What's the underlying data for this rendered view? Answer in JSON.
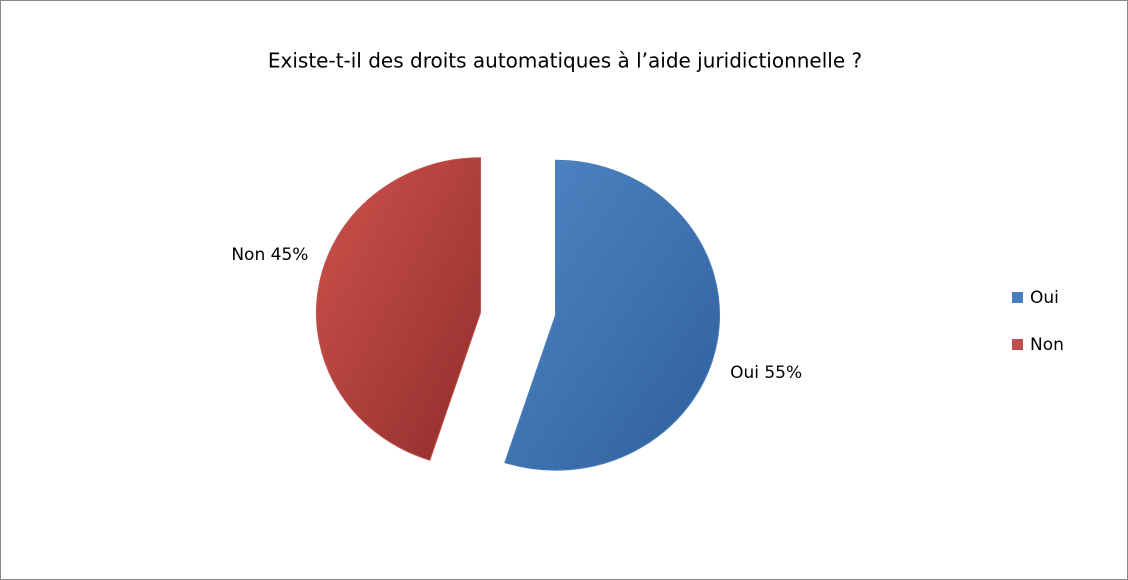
{
  "chart_data": {
    "type": "pie",
    "title": "Existe-t-il des droits automatiques à l’aide juridictionnelle ?",
    "categories": [
      "Oui",
      "Non"
    ],
    "values": [
      55,
      45
    ],
    "value_labels": [
      "Oui 55%",
      "Non 45%"
    ],
    "colors": [
      "#4a7ebb",
      "#c0504d"
    ],
    "legend": "right"
  }
}
